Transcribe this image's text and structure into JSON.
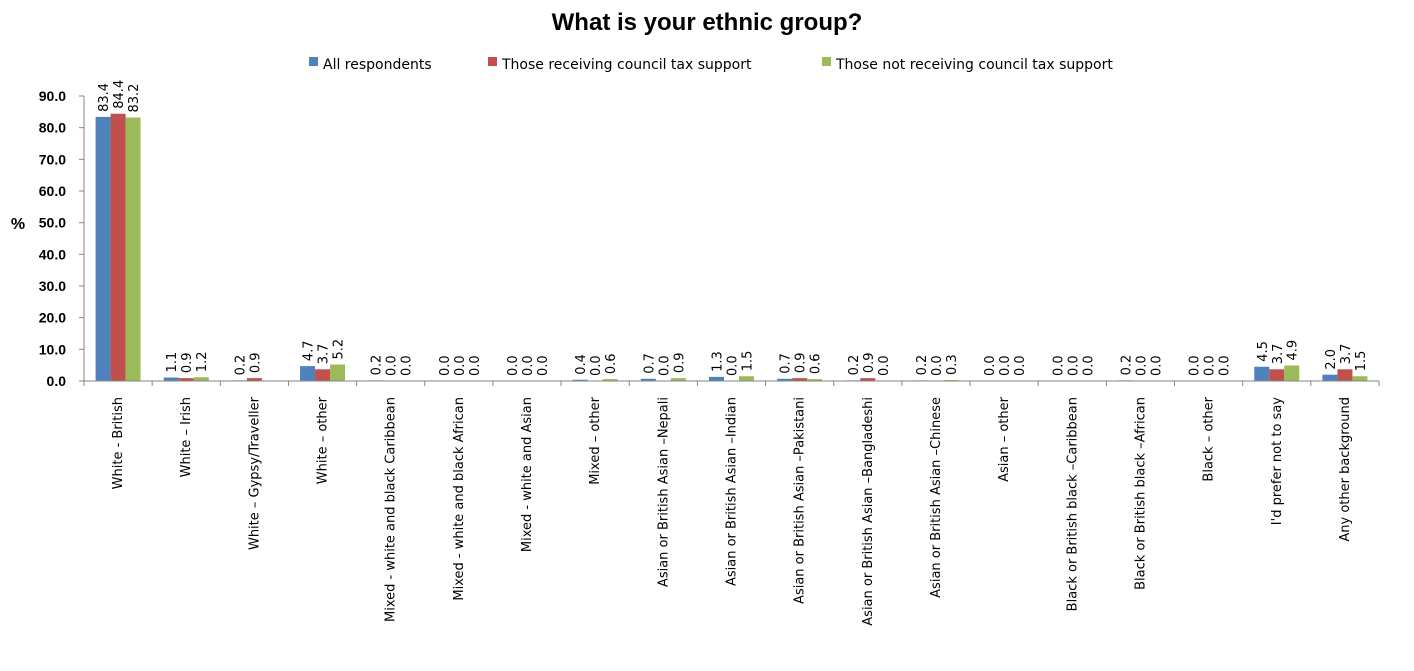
{
  "chart_data": {
    "type": "bar",
    "title": "What is your ethnic group?",
    "ylabel": "%",
    "xlabel": "",
    "ylim": [
      0,
      90
    ],
    "yticks": [
      "0.0",
      "10.0",
      "20.0",
      "30.0",
      "40.0",
      "50.0",
      "60.0",
      "70.0",
      "80.0",
      "90.0"
    ],
    "legend_position": "top",
    "grid": false,
    "categories": [
      "White - British",
      "White – Irish",
      "White – Gypsy/Traveller",
      "White – other",
      "Mixed - white and black Caribbean",
      "Mixed - white and black African",
      "Mixed - white and Asian",
      "Mixed – other",
      "Asian or British Asian –Nepali",
      "Asian or British Asian –Indian",
      "Asian or British Asian –Pakistani",
      "Asian or British Asian –Bangladeshi",
      "Asian or British Asian –Chinese",
      "Asian – other",
      "Black or British black –Caribbean",
      "Black or British black –African",
      "Black – other",
      "I'd prefer not to say",
      "Any other background"
    ],
    "series": [
      {
        "name": "All respondents",
        "color": "#4F81BD",
        "values": [
          83.4,
          1.1,
          0.2,
          4.7,
          0.2,
          0.0,
          0.0,
          0.4,
          0.7,
          1.3,
          0.7,
          0.2,
          0.2,
          0.0,
          0.0,
          0.2,
          0.0,
          4.5,
          2.0
        ],
        "labels": [
          "83.4",
          "1.1",
          "0.2",
          "4.7",
          "0.2",
          "0.0",
          "0.0",
          "0.4",
          "0.7",
          "1.3",
          "0.7",
          "0.2",
          "0.2",
          "0.0",
          "0.0",
          "0.2",
          "0.0",
          "4.5",
          "2.0"
        ]
      },
      {
        "name": "Those receiving council tax support",
        "color": "#C0504D",
        "values": [
          84.4,
          0.9,
          0.9,
          3.7,
          0.0,
          0.0,
          0.0,
          0.0,
          0.0,
          0.0,
          0.9,
          0.9,
          0.0,
          0.0,
          0.0,
          0.0,
          0.0,
          3.7,
          3.7
        ],
        "labels": [
          "84.4",
          "0.9",
          "0.9",
          "3.7",
          "0.0",
          "0.0",
          "0.0",
          "0.0",
          "0.0",
          "0.0",
          "0.9",
          "0.9",
          "0.0",
          "0.0",
          "0.0",
          "0.0",
          "0.0",
          "3.7",
          "3.7"
        ]
      },
      {
        "name": "Those not receiving council tax support",
        "color": "#9BBB59",
        "values": [
          83.2,
          1.2,
          null,
          5.2,
          0.0,
          0.0,
          0.0,
          0.6,
          0.9,
          1.5,
          0.6,
          0.0,
          0.3,
          0.0,
          0.0,
          0.0,
          0.0,
          4.9,
          1.5
        ],
        "labels": [
          "83.2",
          "1.2",
          "",
          "5.2",
          "0.0",
          "0.0",
          "0.0",
          "0.6",
          "0.9",
          "1.5",
          "0.6",
          "0.0",
          "0.3",
          "0.0",
          "0.0",
          "0.0",
          "0.0",
          "4.9",
          "1.5"
        ]
      }
    ]
  }
}
